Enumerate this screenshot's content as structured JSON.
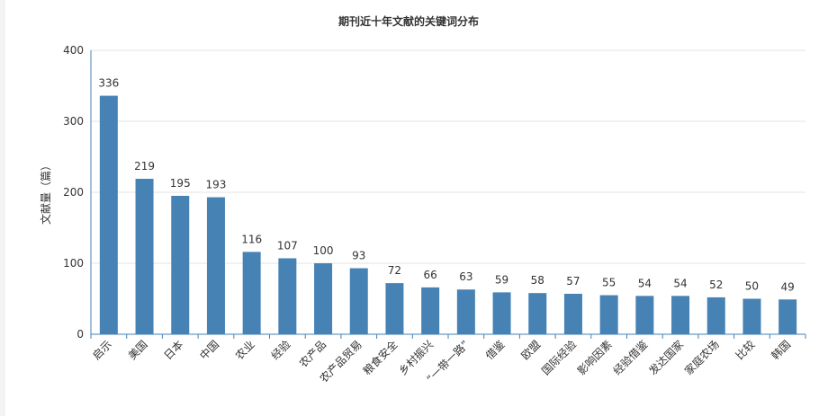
{
  "chart_data": {
    "type": "bar",
    "title": "期刊近十年文献的关键词分布",
    "ylabel": "文献量（篇）",
    "xlabel": "",
    "ylim": [
      0,
      400
    ],
    "yticks": [
      0,
      100,
      200,
      300,
      400
    ],
    "grid": true,
    "categories": [
      "启示",
      "美国",
      "日本",
      "中国",
      "农业",
      "经验",
      "农产品",
      "农产品贸易",
      "粮食安全",
      "乡村振兴",
      "“一带一路”",
      "借鉴",
      "欧盟",
      "国际经验",
      "影响因素",
      "经验借鉴",
      "发达国家",
      "家庭农场",
      "比较",
      "韩国"
    ],
    "values": [
      336,
      219,
      195,
      193,
      116,
      107,
      100,
      93,
      72,
      66,
      63,
      59,
      58,
      57,
      55,
      54,
      54,
      52,
      50,
      49
    ],
    "colors": {
      "bar": "#4682b4",
      "axis": "#4682b4",
      "grid": "#e3e3e3",
      "text": "#333333"
    }
  }
}
